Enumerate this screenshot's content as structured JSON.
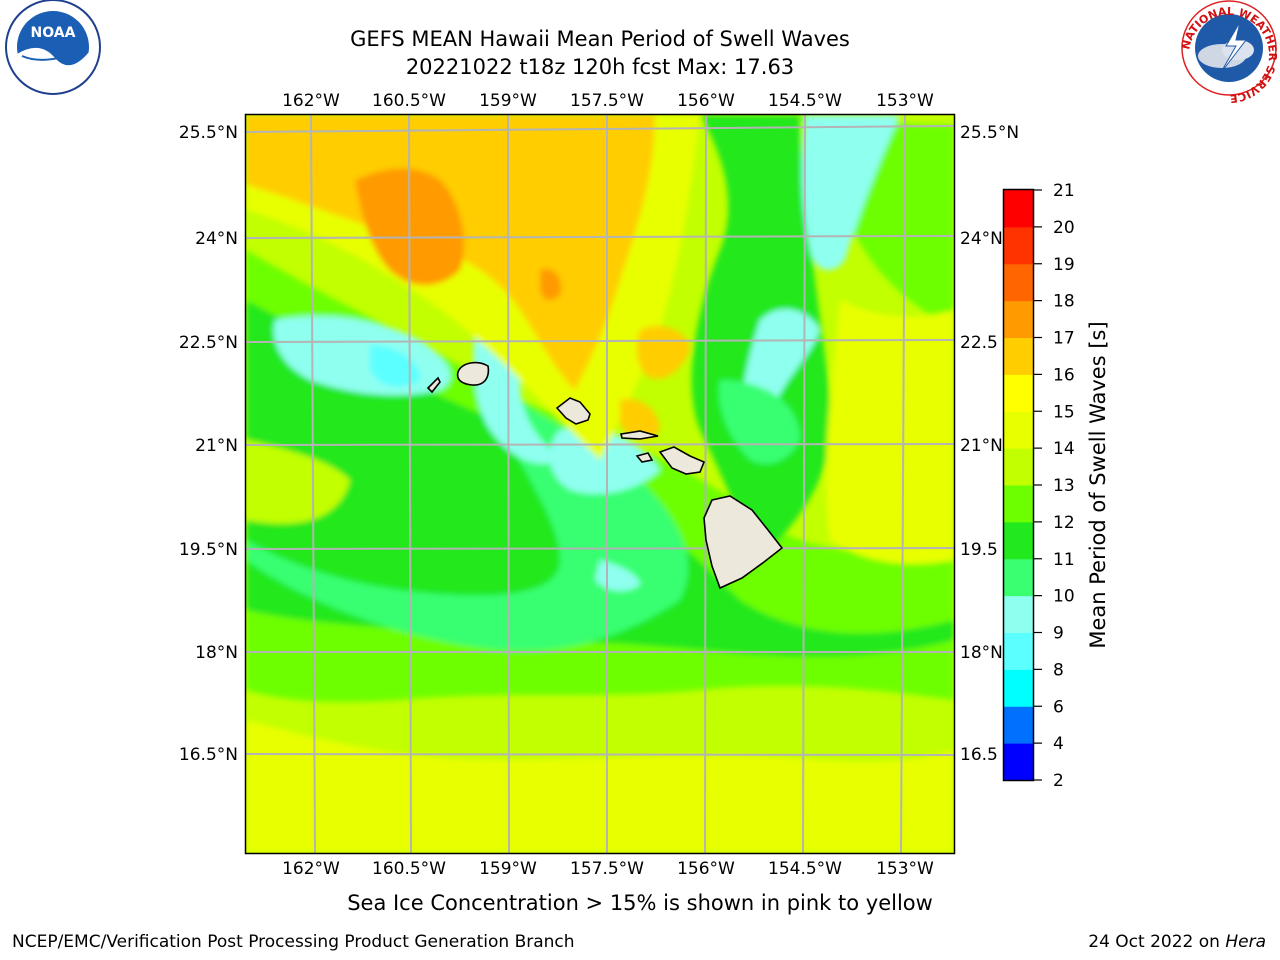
{
  "title": {
    "line1": "GEFS MEAN Hawaii Mean Period of Swell Waves",
    "line2": "20221022 t18z 120h fcst   Max: 17.63"
  },
  "logos": {
    "left": {
      "icon": "noaa-logo-icon",
      "text": "NOAA"
    },
    "right": {
      "icon": "nws-logo-icon",
      "ring_text": "NATIONAL WEATHER SERVICE"
    }
  },
  "map": {
    "lon_ticks": [
      "162°W",
      "160.5°W",
      "159°W",
      "157.5°W",
      "156°W",
      "154.5°W",
      "153°W"
    ],
    "lat_ticks": [
      "25.5°N",
      "24°N",
      "22.5°N",
      "21°N",
      "19.5°N",
      "18°N",
      "16.5°N"
    ],
    "lat_ticks_right": [
      "25.5°N",
      "24°N",
      "22.5",
      "21°N",
      "19.5",
      "18°N",
      "16.5"
    ],
    "land_color": "#ece9dc",
    "grid_color": "#b4b4b4"
  },
  "colorbar": {
    "label": "Mean Period of Swell Waves [s]",
    "levels": [
      "2",
      "4",
      "6",
      "8",
      "9",
      "10",
      "11",
      "12",
      "13",
      "14",
      "15",
      "16",
      "17",
      "18",
      "19",
      "20",
      "21"
    ],
    "colors": [
      "#0000ff",
      "#0070ff",
      "#00ffff",
      "#5cffff",
      "#8ffff0",
      "#39ff71",
      "#22e81e",
      "#6dff00",
      "#c2ff00",
      "#e8ff00",
      "#ffff00",
      "#ffcd00",
      "#ff9a00",
      "#ff6600",
      "#ff3300",
      "#ff0000"
    ]
  },
  "footer": {
    "note": "Sea Ice Concentration > 15% is shown in pink to yellow",
    "left": "NCEP/EMC/Verification Post Processing Product Generation Branch",
    "date": "24 Oct 2022 on ",
    "host": "Hera"
  }
}
